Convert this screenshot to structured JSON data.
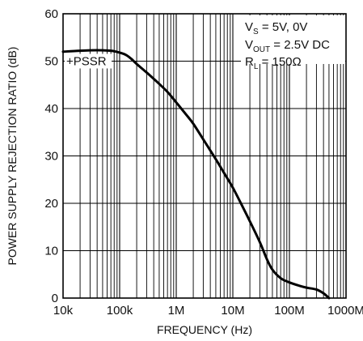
{
  "chart_data": {
    "type": "line",
    "xlabel": "FREQUENCY (Hz)",
    "ylabel": "POWER SUPPLY REJECTION RATIO (dB)",
    "x_scale": "log",
    "xlim": [
      10000,
      1000000000
    ],
    "ylim": [
      0,
      60
    ],
    "x_ticks": [
      10000,
      100000,
      1000000,
      10000000,
      100000000,
      1000000000
    ],
    "x_tick_labels": [
      "10k",
      "100k",
      "1M",
      "10M",
      "100M",
      "1000M"
    ],
    "y_ticks": [
      0,
      10,
      20,
      30,
      40,
      50,
      60
    ],
    "y_tick_labels": [
      "0",
      "10",
      "20",
      "30",
      "40",
      "50",
      "60"
    ],
    "grid": true,
    "series": [
      {
        "name": "+PSSR",
        "x": [
          10000,
          20000,
          40000,
          70000,
          100000,
          130000,
          160000,
          200000,
          300000,
          500000,
          700000,
          1000000,
          1500000,
          2000000,
          3000000,
          5000000,
          7000000,
          10000000,
          15000000,
          20000000,
          30000000,
          40000000,
          50000000,
          70000000,
          100000000,
          150000000,
          200000000,
          300000000,
          400000000,
          500000000
        ],
        "y": [
          52,
          52.2,
          52.3,
          52.2,
          51.8,
          51.3,
          50.5,
          49.4,
          47.6,
          45.2,
          43.5,
          41.3,
          38.7,
          36.8,
          33.5,
          29.3,
          26.4,
          23.3,
          19.2,
          16.2,
          11.8,
          8.2,
          6.0,
          4.2,
          3.3,
          2.6,
          2.2,
          1.8,
          1.0,
          0
        ]
      }
    ],
    "annotations": {
      "line1_main": "V",
      "line1_sub": "S",
      "line1_rest": " = 5V, 0V",
      "line2_main": "V",
      "line2_sub": "OUT",
      "line2_rest": " = 2.5V DC",
      "line3_main": "R",
      "line3_sub": "L",
      "line3_rest": " = 150Ω",
      "curve_label": "+PSSR"
    }
  }
}
